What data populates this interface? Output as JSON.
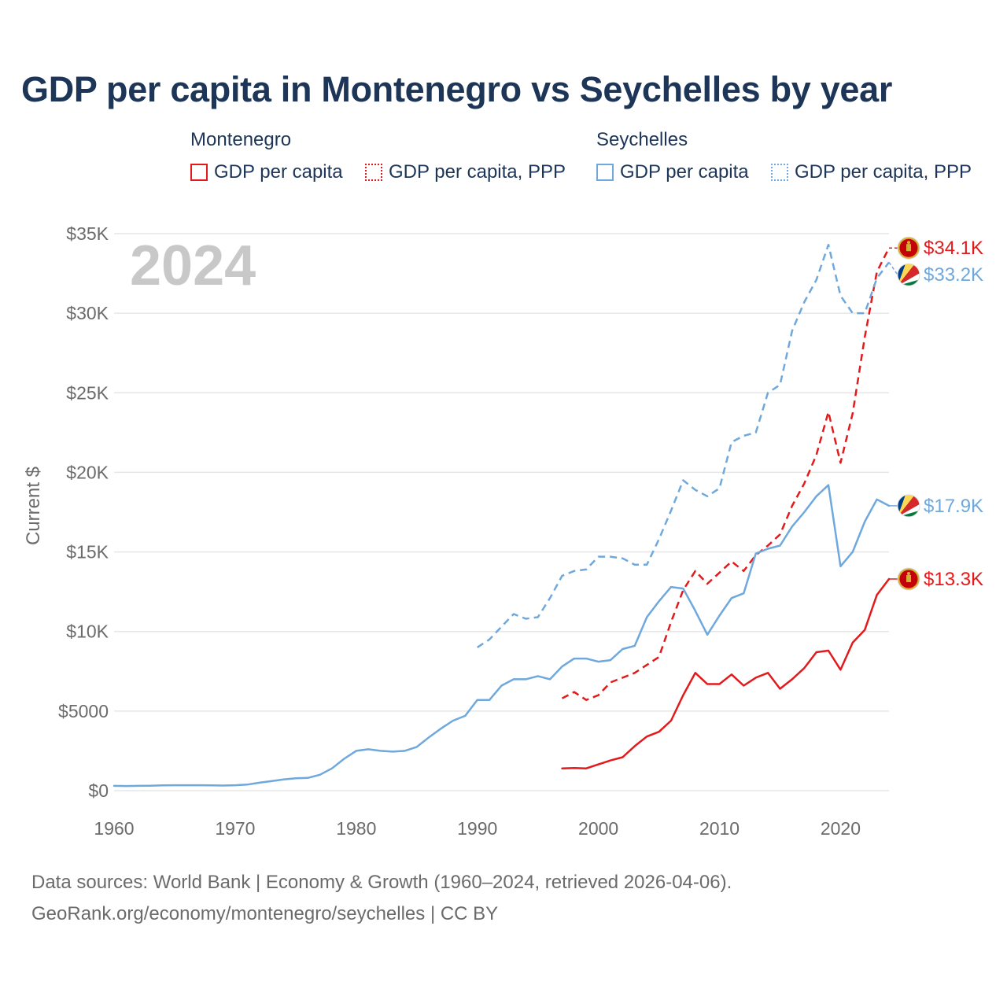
{
  "colors": {
    "montenegro": "#e31a1c",
    "seychelles": "#6fa8dc",
    "title": "#1d3557",
    "grid": "#e6e6e6",
    "axis_text": "#6b6b6b",
    "year_watermark": "#c8c8c8"
  },
  "legend": {
    "montenegro_title": "Montenegro",
    "seychelles_title": "Seychelles",
    "gdp_label": "GDP per capita",
    "ppp_label": "GDP per capita, PPP"
  },
  "footer": {
    "line1": "Data sources: World Bank | Economy & Growth (1960–2024, retrieved 2026-04-06).",
    "line2": "GeoRank.org/economy/montenegro/seychelles | CC BY"
  },
  "icons": {
    "montenegro_flag": "montenegro-flag-icon",
    "seychelles_flag": "seychelles-flag-icon"
  },
  "chart_data": {
    "type": "line",
    "title": "GDP per capita in Montenegro vs Seychelles by year",
    "year_label": "2024",
    "xlabel": "",
    "ylabel": "Current $",
    "xlim": [
      1960,
      2024
    ],
    "ylim": [
      0,
      35000
    ],
    "x_ticks": [
      1960,
      1970,
      1980,
      1990,
      2000,
      2010,
      2020
    ],
    "y_ticks": [
      0,
      5000,
      10000,
      15000,
      20000,
      25000,
      30000,
      35000
    ],
    "y_tick_labels": [
      "$0",
      "$5000",
      "$10K",
      "$15K",
      "$20K",
      "$25K",
      "$30K",
      "$35K"
    ],
    "grid": true,
    "series": [
      {
        "name": "Montenegro GDP per capita",
        "country": "Montenegro",
        "style": "solid",
        "color": "#e31a1c",
        "end_label": "$13.3K",
        "flag": "montenegro",
        "x": [
          1997,
          1998,
          1999,
          2000,
          2001,
          2002,
          2003,
          2004,
          2005,
          2006,
          2007,
          2008,
          2009,
          2010,
          2011,
          2012,
          2013,
          2014,
          2015,
          2016,
          2017,
          2018,
          2019,
          2020,
          2021,
          2022,
          2023,
          2024
        ],
        "y": [
          1400,
          1420,
          1400,
          1650,
          1900,
          2100,
          2800,
          3400,
          3700,
          4400,
          6000,
          7400,
          6700,
          6700,
          7300,
          6600,
          7100,
          7400,
          6400,
          7000,
          7700,
          8700,
          8800,
          7600,
          9300,
          10100,
          12300,
          13300
        ]
      },
      {
        "name": "Montenegro GDP per capita, PPP",
        "country": "Montenegro",
        "style": "dashed",
        "color": "#e31a1c",
        "end_label": "$34.1K",
        "flag": "montenegro",
        "x": [
          1997,
          1998,
          1999,
          2000,
          2001,
          2002,
          2003,
          2004,
          2005,
          2006,
          2007,
          2008,
          2009,
          2010,
          2011,
          2012,
          2013,
          2014,
          2015,
          2016,
          2017,
          2018,
          2019,
          2020,
          2021,
          2022,
          2023,
          2024
        ],
        "y": [
          5800,
          6200,
          5700,
          6000,
          6800,
          7100,
          7400,
          7900,
          8400,
          10600,
          12600,
          13800,
          13000,
          13700,
          14400,
          13800,
          14800,
          15400,
          16100,
          17900,
          19300,
          21100,
          23800,
          20600,
          23700,
          28500,
          32600,
          34100
        ]
      },
      {
        "name": "Seychelles GDP per capita",
        "country": "Seychelles",
        "style": "solid",
        "color": "#6fa8dc",
        "end_label": "$17.9K",
        "flag": "seychelles",
        "x": [
          1960,
          1961,
          1962,
          1963,
          1964,
          1965,
          1966,
          1967,
          1968,
          1969,
          1970,
          1971,
          1972,
          1973,
          1974,
          1975,
          1976,
          1977,
          1978,
          1979,
          1980,
          1981,
          1982,
          1983,
          1984,
          1985,
          1986,
          1987,
          1988,
          1989,
          1990,
          1991,
          1992,
          1993,
          1994,
          1995,
          1996,
          1997,
          1998,
          1999,
          2000,
          2001,
          2002,
          2003,
          2004,
          2005,
          2006,
          2007,
          2008,
          2009,
          2010,
          2011,
          2012,
          2013,
          2014,
          2015,
          2016,
          2017,
          2018,
          2019,
          2020,
          2021,
          2022,
          2023,
          2024
        ],
        "y": [
          300,
          290,
          300,
          310,
          330,
          340,
          340,
          340,
          330,
          320,
          340,
          380,
          500,
          600,
          700,
          780,
          800,
          1000,
          1400,
          2000,
          2500,
          2600,
          2500,
          2450,
          2500,
          2750,
          3350,
          3900,
          4400,
          4700,
          5700,
          5700,
          6600,
          7000,
          7000,
          7200,
          7000,
          7800,
          8300,
          8300,
          8100,
          8200,
          8900,
          9100,
          10900,
          11900,
          12800,
          12700,
          11300,
          9800,
          11000,
          12100,
          12400,
          14900,
          15200,
          15400,
          16600,
          17500,
          18500,
          19200,
          14100,
          15000,
          16900,
          18300,
          17900
        ]
      },
      {
        "name": "Seychelles GDP per capita, PPP",
        "country": "Seychelles",
        "style": "dashed",
        "color": "#6fa8dc",
        "end_label": "$33.2K",
        "flag": "seychelles",
        "x": [
          1990,
          1991,
          1992,
          1993,
          1994,
          1995,
          1996,
          1997,
          1998,
          1999,
          2000,
          2001,
          2002,
          2003,
          2004,
          2005,
          2006,
          2007,
          2008,
          2009,
          2010,
          2011,
          2012,
          2013,
          2014,
          2015,
          2016,
          2017,
          2018,
          2019,
          2020,
          2021,
          2022,
          2023,
          2024
        ],
        "y": [
          9000,
          9500,
          10300,
          11100,
          10800,
          10900,
          12100,
          13500,
          13800,
          13900,
          14700,
          14700,
          14600,
          14200,
          14200,
          15800,
          17600,
          19500,
          18900,
          18500,
          19000,
          21900,
          22300,
          22500,
          25000,
          25500,
          28900,
          30700,
          32100,
          34300,
          31100,
          30000,
          30000,
          32200,
          33200
        ]
      }
    ]
  }
}
